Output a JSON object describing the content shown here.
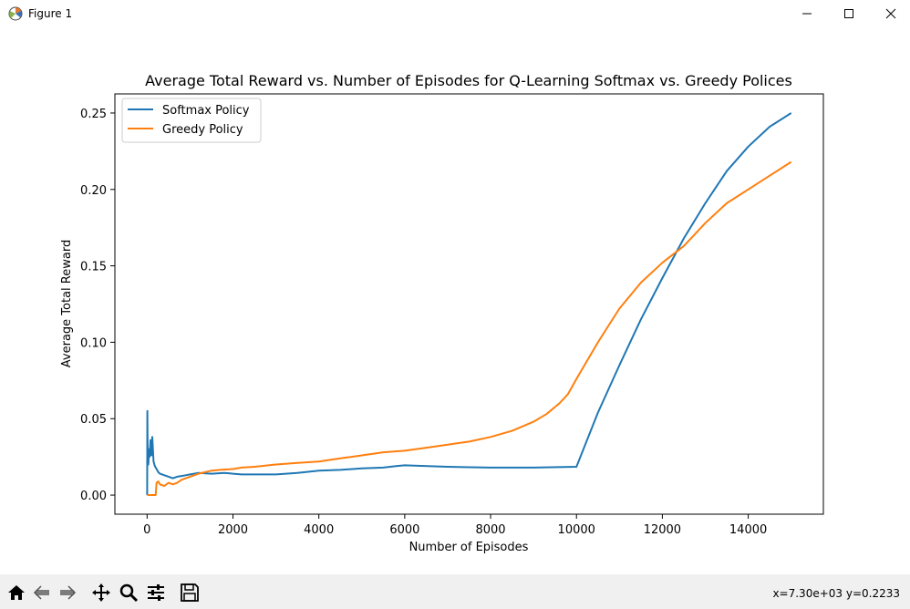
{
  "window": {
    "title": "Figure 1",
    "icons": [
      "matplotlib-icon",
      "minimize-icon",
      "maximize-icon",
      "close-icon"
    ]
  },
  "toolbar": {
    "buttons": [
      "home-icon",
      "back-icon",
      "forward-icon",
      "pan-icon",
      "zoom-icon",
      "configure-subplots-icon",
      "save-icon"
    ],
    "coords": "x=7.30e+03 y=0.2233"
  },
  "colors": {
    "softmax": "#1f77b4",
    "greedy": "#ff7f0e",
    "toolbar_bg": "#f0f0f0"
  },
  "chart_data": {
    "type": "line",
    "title": "Average Total Reward vs. Number of Episodes for Q-Learning Softmax vs. Greedy Polices",
    "xlabel": "Number of Episodes",
    "ylabel": "Average Total Reward",
    "xlim": [
      -750,
      15750
    ],
    "ylim": [
      -0.0125,
      0.2625
    ],
    "xticks": [
      0,
      2000,
      4000,
      6000,
      8000,
      10000,
      12000,
      14000
    ],
    "xtick_labels": [
      "0",
      "2000",
      "4000",
      "6000",
      "8000",
      "10000",
      "12000",
      "14000"
    ],
    "yticks": [
      0.0,
      0.05,
      0.1,
      0.15,
      0.2,
      0.25
    ],
    "ytick_labels": [
      "0.00",
      "0.05",
      "0.10",
      "0.15",
      "0.20",
      "0.25"
    ],
    "grid": false,
    "legend": "upper-left",
    "series": [
      {
        "name": "Softmax Policy",
        "x": [
          1,
          5,
          12,
          20,
          30,
          45,
          60,
          80,
          100,
          120,
          150,
          180,
          220,
          260,
          300,
          350,
          400,
          450,
          500,
          600,
          700,
          800,
          900,
          1000,
          1200,
          1500,
          1800,
          2000,
          2200,
          2500,
          3000,
          3500,
          4000,
          4500,
          5000,
          5500,
          5800,
          6000,
          7000,
          8000,
          9000,
          10000,
          10500,
          11000,
          11500,
          12000,
          12500,
          13000,
          13500,
          14000,
          14500,
          15000
        ],
        "y": [
          0.0,
          0.055,
          0.032,
          0.023,
          0.02,
          0.03,
          0.025,
          0.036,
          0.026,
          0.038,
          0.022,
          0.019,
          0.017,
          0.015,
          0.014,
          0.0135,
          0.013,
          0.0125,
          0.012,
          0.011,
          0.012,
          0.0125,
          0.013,
          0.0135,
          0.0145,
          0.014,
          0.0145,
          0.014,
          0.0135,
          0.0135,
          0.0135,
          0.0145,
          0.016,
          0.0165,
          0.0175,
          0.018,
          0.019,
          0.0195,
          0.0185,
          0.018,
          0.018,
          0.0185,
          0.054,
          0.085,
          0.115,
          0.142,
          0.168,
          0.191,
          0.212,
          0.228,
          0.241,
          0.25
        ]
      },
      {
        "name": "Greedy Policy",
        "x": [
          1,
          100,
          150,
          200,
          220,
          260,
          300,
          400,
          500,
          600,
          700,
          800,
          1000,
          1200,
          1500,
          1700,
          2000,
          2200,
          2500,
          3000,
          3500,
          4000,
          4500,
          5000,
          5500,
          6000,
          6500,
          7000,
          7500,
          8000,
          8500,
          9000,
          9300,
          9600,
          9800,
          10000,
          10500,
          11000,
          11500,
          12000,
          12500,
          13000,
          13500,
          14000,
          14500,
          15000
        ],
        "y": [
          0.0,
          0.0,
          0.0,
          0.0,
          0.008,
          0.009,
          0.007,
          0.006,
          0.008,
          0.007,
          0.008,
          0.01,
          0.012,
          0.014,
          0.016,
          0.0165,
          0.017,
          0.018,
          0.0185,
          0.02,
          0.021,
          0.022,
          0.024,
          0.026,
          0.028,
          0.029,
          0.031,
          0.033,
          0.035,
          0.038,
          0.042,
          0.048,
          0.053,
          0.06,
          0.066,
          0.076,
          0.1,
          0.122,
          0.139,
          0.152,
          0.163,
          0.178,
          0.191,
          0.2,
          0.209,
          0.218
        ]
      }
    ]
  }
}
